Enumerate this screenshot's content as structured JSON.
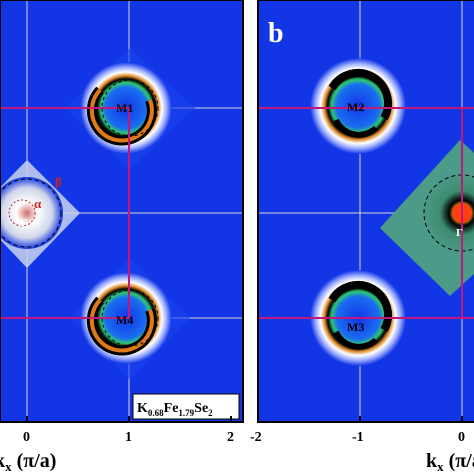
{
  "panel_b_label": "b",
  "left_panel": {
    "x_axis_label": "k",
    "x_axis_subscript": "x",
    "x_axis_units": " (π/a)",
    "x_ticks": [
      "0",
      "1",
      "2"
    ],
    "spots": [
      {
        "label": "M1"
      },
      {
        "label": "M4"
      },
      {
        "label": "α"
      },
      {
        "label": "β"
      },
      {
        "label": "Γ"
      }
    ],
    "compound": {
      "base_K": "K",
      "sub_K": "0.68",
      "base_Fe": "Fe",
      "sub_Fe": "1.79",
      "base_Se": "Se",
      "sub_Se": "2"
    }
  },
  "right_panel": {
    "x_axis_label": "k",
    "x_axis_subscript": "x",
    "x_axis_units": " (π/a)",
    "x_ticks": [
      "-2",
      "-1",
      "0"
    ],
    "spots": [
      {
        "label": "M2"
      },
      {
        "label": "M3"
      },
      {
        "label": "Γ"
      }
    ]
  },
  "colors": {
    "background_map": "#1235e6",
    "bz_boundary": "#c2187e",
    "grid": "#d8d8d8"
  }
}
